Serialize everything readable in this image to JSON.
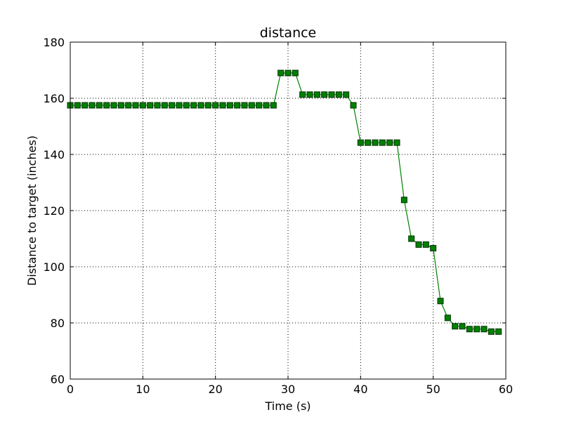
{
  "chart_data": {
    "type": "line",
    "title": "distance",
    "xlabel": "Time (s)",
    "ylabel": "Distance to target (inches)",
    "xlim": [
      0,
      60
    ],
    "ylim": [
      60,
      180
    ],
    "xticks": [
      0,
      10,
      20,
      30,
      40,
      50,
      60
    ],
    "yticks": [
      60,
      80,
      100,
      120,
      140,
      160,
      180
    ],
    "grid": true,
    "legend": "none",
    "marker": "square",
    "line_color": "#008000",
    "marker_fill": "#008000",
    "marker_edge": "#003000",
    "series": [
      {
        "x": [
          0,
          1,
          2,
          3,
          4,
          5,
          6,
          7,
          8,
          9,
          10,
          11,
          12,
          13,
          14,
          15,
          16,
          17,
          18,
          19,
          20,
          21,
          22,
          23,
          24,
          25,
          26,
          27,
          28,
          29,
          30,
          31,
          32,
          33,
          34,
          35,
          36,
          37,
          38,
          39,
          40,
          41,
          42,
          43,
          44,
          45,
          46,
          47,
          48,
          49,
          50,
          51,
          52,
          53,
          54,
          55,
          56,
          57,
          58,
          59
        ],
        "y": [
          157.5,
          157.5,
          157.5,
          157.5,
          157.5,
          157.5,
          157.5,
          157.5,
          157.5,
          157.5,
          157.5,
          157.5,
          157.5,
          157.5,
          157.5,
          157.5,
          157.5,
          157.5,
          157.5,
          157.5,
          157.5,
          157.5,
          157.5,
          157.5,
          157.5,
          157.5,
          157.5,
          157.5,
          157.5,
          169,
          169,
          169,
          161.3,
          161.3,
          161.3,
          161.3,
          161.3,
          161.3,
          161.3,
          157.5,
          144.2,
          144.2,
          144.2,
          144.2,
          144.2,
          144.2,
          123.8,
          110,
          107.9,
          107.9,
          106.6,
          87.8,
          81.8,
          78.8,
          78.8,
          77.8,
          77.8,
          77.8,
          76.9,
          76.9
        ]
      }
    ]
  }
}
